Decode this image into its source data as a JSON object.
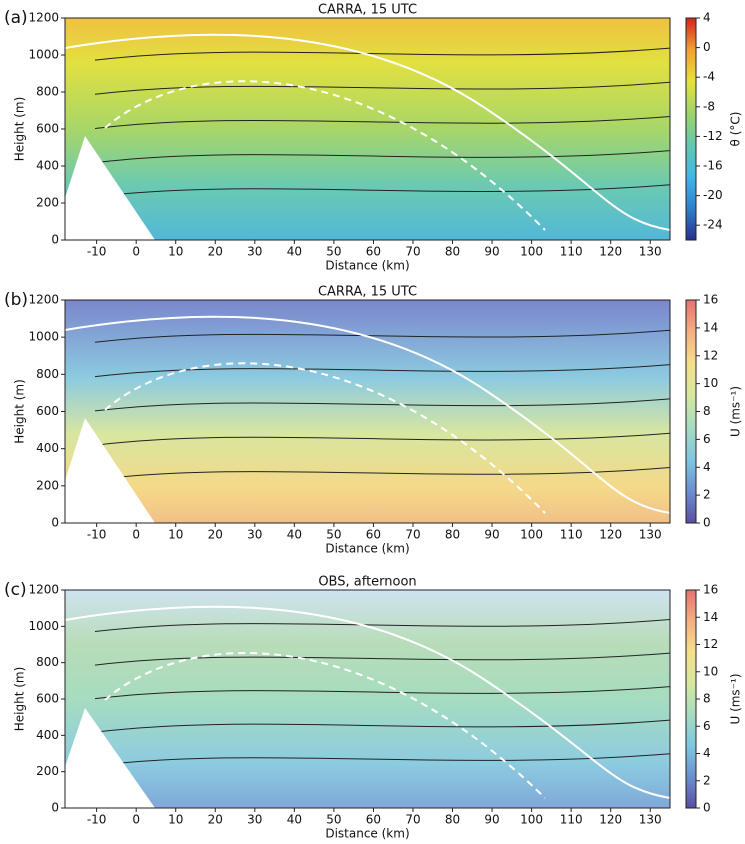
{
  "chart_data": [
    {
      "type": "contour",
      "panel_label": "(a)",
      "title": "CARRA, 15 UTC",
      "xlabel": "Distance (km)",
      "ylabel": "Height (m)",
      "colorbar_label": "θ (°C)",
      "xlim": [
        -18,
        135
      ],
      "xticks": [
        -10,
        0,
        10,
        20,
        30,
        40,
        50,
        60,
        70,
        80,
        90,
        100,
        110,
        120,
        130
      ],
      "ylim": [
        0,
        1200
      ],
      "yticks": [
        0,
        200,
        400,
        600,
        800,
        1000,
        1200
      ],
      "clim": [
        -26,
        4
      ],
      "cticks": [
        -24,
        -20,
        -16,
        -12,
        -8,
        -4,
        0,
        4
      ],
      "colormap": [
        "#26308c",
        "#2f7fd0",
        "#3fb8e8",
        "#62c9b0",
        "#9fd46a",
        "#e6e23a",
        "#f4a030",
        "#d62020"
      ]
    },
    {
      "type": "contour",
      "panel_label": "(b)",
      "title": "CARRA, 15 UTC",
      "xlabel": "Distance (km)",
      "ylabel": "Height (m)",
      "colorbar_label": "U (ms⁻¹)",
      "xlim": [
        -18,
        135
      ],
      "xticks": [
        -10,
        0,
        10,
        20,
        30,
        40,
        50,
        60,
        70,
        80,
        90,
        100,
        110,
        120,
        130
      ],
      "ylim": [
        0,
        1200
      ],
      "yticks": [
        0,
        200,
        400,
        600,
        800,
        1000,
        1200
      ],
      "clim": [
        0,
        16
      ],
      "cticks": [
        0,
        2,
        4,
        6,
        8,
        10,
        12,
        14,
        16
      ],
      "colormap": [
        "#5a4fa3",
        "#6b8fd0",
        "#7fc7e0",
        "#a6dcc0",
        "#d6e8a0",
        "#f5e08a",
        "#f5b080",
        "#e87070"
      ]
    },
    {
      "type": "contour",
      "panel_label": "(c)",
      "title": "OBS, afternoon",
      "xlabel": "Distance (km)",
      "ylabel": "Height (m)",
      "colorbar_label": "U (ms⁻¹)",
      "xlim": [
        -18,
        135
      ],
      "xticks": [
        -10,
        0,
        10,
        20,
        30,
        40,
        50,
        60,
        70,
        80,
        90,
        100,
        110,
        120,
        130
      ],
      "ylim": [
        0,
        1200
      ],
      "yticks": [
        0,
        200,
        400,
        600,
        800,
        1000,
        1200
      ],
      "clim": [
        0,
        16
      ],
      "cticks": [
        0,
        2,
        4,
        6,
        8,
        10,
        12,
        14,
        16
      ],
      "colormap": [
        "#5a4fa3",
        "#6b8fd0",
        "#7fc7e0",
        "#a6dcc0",
        "#d6e8a0",
        "#f5e08a",
        "#f5b080",
        "#e87070"
      ]
    }
  ]
}
